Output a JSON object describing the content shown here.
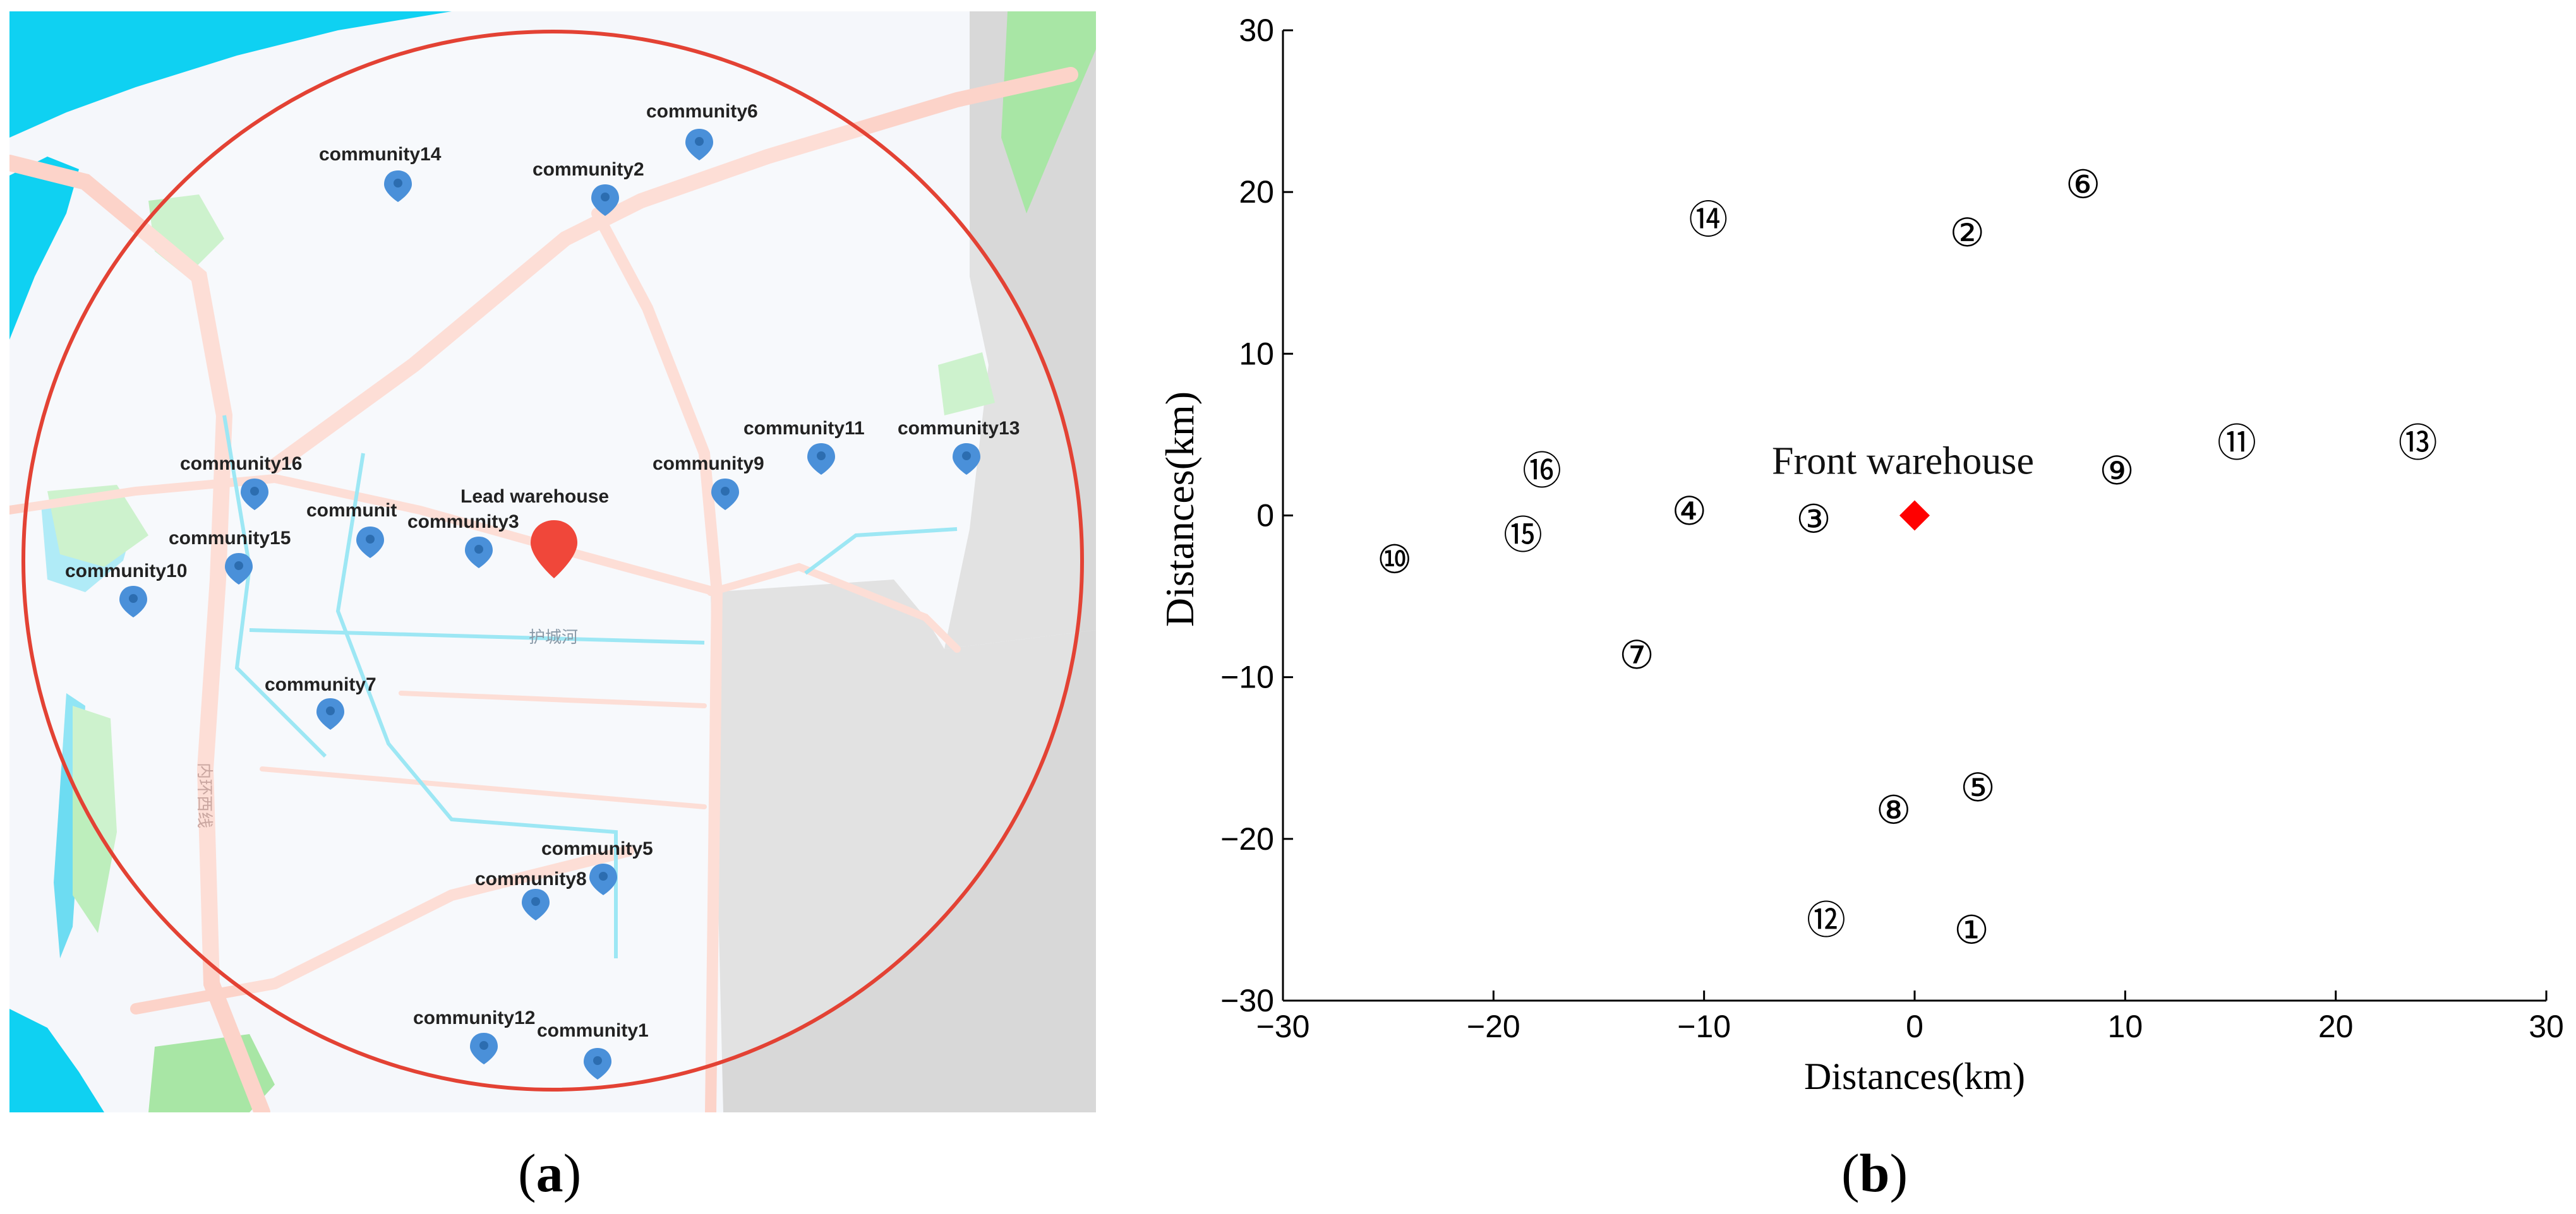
{
  "panel_a": {
    "caption_letter": "a",
    "lead_warehouse_label": "Lead warehouse",
    "river_label": "护城河",
    "road_label": "内环西线",
    "communities": [
      {
        "id": "community6",
        "label": "community6"
      },
      {
        "id": "community14",
        "label": "community14"
      },
      {
        "id": "community2",
        "label": "community2"
      },
      {
        "id": "community11",
        "label": "community11"
      },
      {
        "id": "community13",
        "label": "community13"
      },
      {
        "id": "community16",
        "label": "community16"
      },
      {
        "id": "community9",
        "label": "community9"
      },
      {
        "id": "community4",
        "label": "communit"
      },
      {
        "id": "community3",
        "label": "community3"
      },
      {
        "id": "community15",
        "label": "community15"
      },
      {
        "id": "community10",
        "label": "community10"
      },
      {
        "id": "community7",
        "label": "community7"
      },
      {
        "id": "community5",
        "label": "community5"
      },
      {
        "id": "community8",
        "label": "community8"
      },
      {
        "id": "community12",
        "label": "community12"
      },
      {
        "id": "community1",
        "label": "community1"
      }
    ],
    "colors": {
      "water": "#0fd1f2",
      "circle": "#e34234",
      "marker": "#4a90d9",
      "warehouse_marker": "#f0473a",
      "grey_area": "#d6d6d6"
    }
  },
  "chart_data": {
    "type": "scatter",
    "caption_letter": "b",
    "xlabel": "Distances(km)",
    "ylabel": "Distances(km)",
    "xlim": [
      -30,
      30
    ],
    "ylim": [
      -30,
      30
    ],
    "xticks": [
      -30,
      -20,
      -10,
      0,
      10,
      20,
      30
    ],
    "yticks": [
      -30,
      -20,
      -10,
      0,
      10,
      20,
      30
    ],
    "grid": false,
    "warehouse": {
      "label": "Front warehouse",
      "x": 0,
      "y": 0,
      "color": "#ff0000"
    },
    "points": [
      {
        "label": "①",
        "x": 2.7,
        "y": -25.6
      },
      {
        "label": "②",
        "x": 2.5,
        "y": 17.5
      },
      {
        "label": "③",
        "x": -4.8,
        "y": -0.2
      },
      {
        "label": "④",
        "x": -10.7,
        "y": 0.3
      },
      {
        "label": "⑤",
        "x": 3.0,
        "y": -16.8
      },
      {
        "label": "⑥",
        "x": 8.0,
        "y": 20.5
      },
      {
        "label": "⑦",
        "x": -13.2,
        "y": -8.6
      },
      {
        "label": "⑧",
        "x": -1.0,
        "y": -18.2
      },
      {
        "label": "⑨",
        "x": 9.6,
        "y": 2.8
      },
      {
        "label": "⑩",
        "x": -24.7,
        "y": -2.7
      },
      {
        "label": "⑪",
        "x": 15.3,
        "y": 4.5
      },
      {
        "label": "⑫",
        "x": -4.2,
        "y": -25.0
      },
      {
        "label": "⑬",
        "x": 23.9,
        "y": 4.5
      },
      {
        "label": "⑭",
        "x": -9.8,
        "y": 18.3
      },
      {
        "label": "⑮",
        "x": -18.6,
        "y": -1.2
      },
      {
        "label": "⑯",
        "x": -17.7,
        "y": 2.8
      }
    ]
  }
}
